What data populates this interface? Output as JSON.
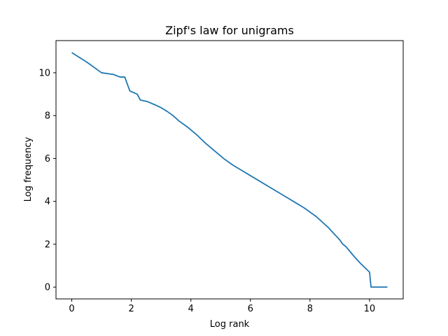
{
  "chart_data": {
    "type": "line",
    "title": "Zipf's law for unigrams",
    "xlabel": "Log rank",
    "ylabel": "Log frequency",
    "xlim": [
      -0.53,
      11.13
    ],
    "ylim": [
      -0.55,
      11.5
    ],
    "xticks": [
      0,
      2,
      4,
      6,
      8,
      10
    ],
    "yticks": [
      0,
      2,
      4,
      6,
      8,
      10
    ],
    "grid": false,
    "series": [
      {
        "color": "#1f77b4",
        "drawstyle": "steps",
        "x": [
          0.0,
          0.5,
          1.0,
          1.4,
          1.62,
          1.78,
          1.95,
          2.2,
          2.3,
          2.55,
          2.8,
          3.0,
          3.2,
          3.4,
          3.6,
          3.9,
          4.2,
          4.5,
          4.8,
          5.1,
          5.4,
          5.7,
          6.0,
          6.3,
          6.6,
          6.9,
          7.2,
          7.5,
          7.8,
          8.0,
          8.2,
          8.4,
          8.6,
          8.7,
          8.8,
          8.9,
          9.0,
          9.1,
          9.2,
          9.35,
          9.5,
          9.7,
          10.0,
          10.05,
          10.6
        ],
        "y": [
          10.94,
          10.5,
          10.0,
          9.92,
          9.8,
          9.8,
          9.15,
          9.0,
          8.73,
          8.65,
          8.5,
          8.37,
          8.2,
          8.0,
          7.75,
          7.45,
          7.1,
          6.7,
          6.35,
          6.0,
          5.7,
          5.45,
          5.2,
          4.95,
          4.7,
          4.45,
          4.2,
          3.95,
          3.7,
          3.5,
          3.3,
          3.05,
          2.8,
          2.65,
          2.5,
          2.35,
          2.2,
          2.0,
          1.9,
          1.65,
          1.4,
          1.1,
          0.7,
          0.0,
          0.0
        ]
      }
    ]
  }
}
